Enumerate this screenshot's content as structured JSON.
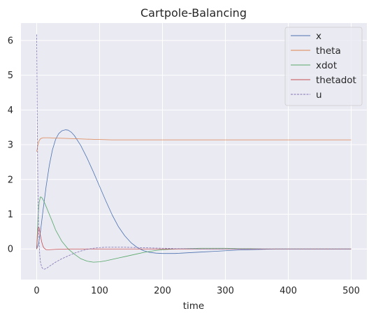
{
  "chart_data": {
    "type": "line",
    "title": "Cartpole-Balancing",
    "xlabel": "time",
    "ylabel": "",
    "xlim": [
      -25,
      525
    ],
    "ylim": [
      -0.88,
      6.5
    ],
    "xticks": [
      0,
      100,
      200,
      300,
      400,
      500
    ],
    "yticks": [
      0,
      1,
      2,
      3,
      4,
      5,
      6
    ],
    "grid": true,
    "background": "#eaeaf2",
    "legend": "top-right",
    "series": [
      {
        "name": "x",
        "color": "#4c72b0",
        "dash": "solid",
        "x": [
          0,
          3,
          6,
          10,
          15,
          20,
          25,
          30,
          35,
          40,
          46,
          50,
          55,
          60,
          70,
          80,
          90,
          100,
          110,
          120,
          130,
          140,
          150,
          160,
          170,
          180,
          190,
          200,
          210,
          220,
          230,
          240,
          250,
          260,
          280,
          300,
          320,
          340,
          360,
          380,
          400,
          450,
          500
        ],
        "y": [
          0,
          0.15,
          0.5,
          1.1,
          1.8,
          2.4,
          2.85,
          3.15,
          3.32,
          3.4,
          3.43,
          3.42,
          3.36,
          3.26,
          2.98,
          2.62,
          2.22,
          1.8,
          1.38,
          0.98,
          0.64,
          0.38,
          0.18,
          0.04,
          -0.05,
          -0.1,
          -0.12,
          -0.13,
          -0.13,
          -0.13,
          -0.12,
          -0.11,
          -0.1,
          -0.09,
          -0.07,
          -0.05,
          -0.03,
          -0.02,
          -0.01,
          0,
          0,
          0,
          0
        ]
      },
      {
        "name": "theta",
        "color": "#dd8452",
        "dash": "solid",
        "x": [
          0,
          2,
          4,
          6,
          8,
          10,
          15,
          20,
          30,
          50,
          80,
          100,
          120,
          150,
          200,
          300,
          400,
          500
        ],
        "y": [
          2.8,
          3.0,
          3.12,
          3.17,
          3.19,
          3.2,
          3.2,
          3.2,
          3.19,
          3.18,
          3.16,
          3.15,
          3.14,
          3.14,
          3.14,
          3.14,
          3.14,
          3.14
        ]
      },
      {
        "name": "xdot",
        "color": "#55a868",
        "dash": "solid",
        "x": [
          0,
          2,
          4,
          6,
          8,
          10,
          12,
          15,
          20,
          25,
          30,
          40,
          50,
          60,
          70,
          80,
          90,
          100,
          110,
          120,
          130,
          140,
          150,
          160,
          170,
          180,
          190,
          200,
          220,
          240,
          260,
          280,
          300,
          320,
          340,
          360,
          380,
          400,
          500
        ],
        "y": [
          0,
          0.9,
          1.35,
          1.5,
          1.48,
          1.42,
          1.35,
          1.22,
          1.0,
          0.78,
          0.55,
          0.22,
          0.0,
          -0.15,
          -0.28,
          -0.35,
          -0.38,
          -0.37,
          -0.34,
          -0.3,
          -0.26,
          -0.22,
          -0.18,
          -0.14,
          -0.1,
          -0.07,
          -0.04,
          -0.02,
          0.0,
          0.01,
          0.02,
          0.02,
          0.02,
          0.01,
          0.01,
          0.0,
          0.0,
          0.0,
          0.0
        ]
      },
      {
        "name": "thetadot",
        "color": "#c44e52",
        "dash": "solid",
        "x": [
          0,
          1,
          2,
          3,
          4,
          5,
          6,
          8,
          10,
          12,
          15,
          20,
          30,
          50,
          100,
          200,
          300,
          400,
          500
        ],
        "y": [
          0,
          0.3,
          0.55,
          0.64,
          0.6,
          0.5,
          0.38,
          0.2,
          0.08,
          0.02,
          -0.02,
          -0.02,
          -0.01,
          0.0,
          0.0,
          0.0,
          0.0,
          0.0,
          0.0
        ]
      },
      {
        "name": "u",
        "color": "#8172b3",
        "dash": "dashed",
        "x": [
          0,
          1,
          2,
          3,
          4,
          5,
          6,
          8,
          10,
          12,
          14,
          16,
          20,
          25,
          30,
          40,
          50,
          60,
          70,
          80,
          90,
          100,
          110,
          120,
          140,
          160,
          180,
          200,
          220,
          240,
          260,
          300,
          350,
          400,
          500
        ],
        "y": [
          6.17,
          3.5,
          1.6,
          0.6,
          0.1,
          -0.2,
          -0.38,
          -0.52,
          -0.57,
          -0.58,
          -0.57,
          -0.55,
          -0.5,
          -0.44,
          -0.38,
          -0.28,
          -0.2,
          -0.12,
          -0.06,
          -0.01,
          0.02,
          0.04,
          0.05,
          0.05,
          0.05,
          0.04,
          0.03,
          0.02,
          0.01,
          0.01,
          0.0,
          0.0,
          0.0,
          0.0,
          0.0
        ]
      }
    ]
  }
}
